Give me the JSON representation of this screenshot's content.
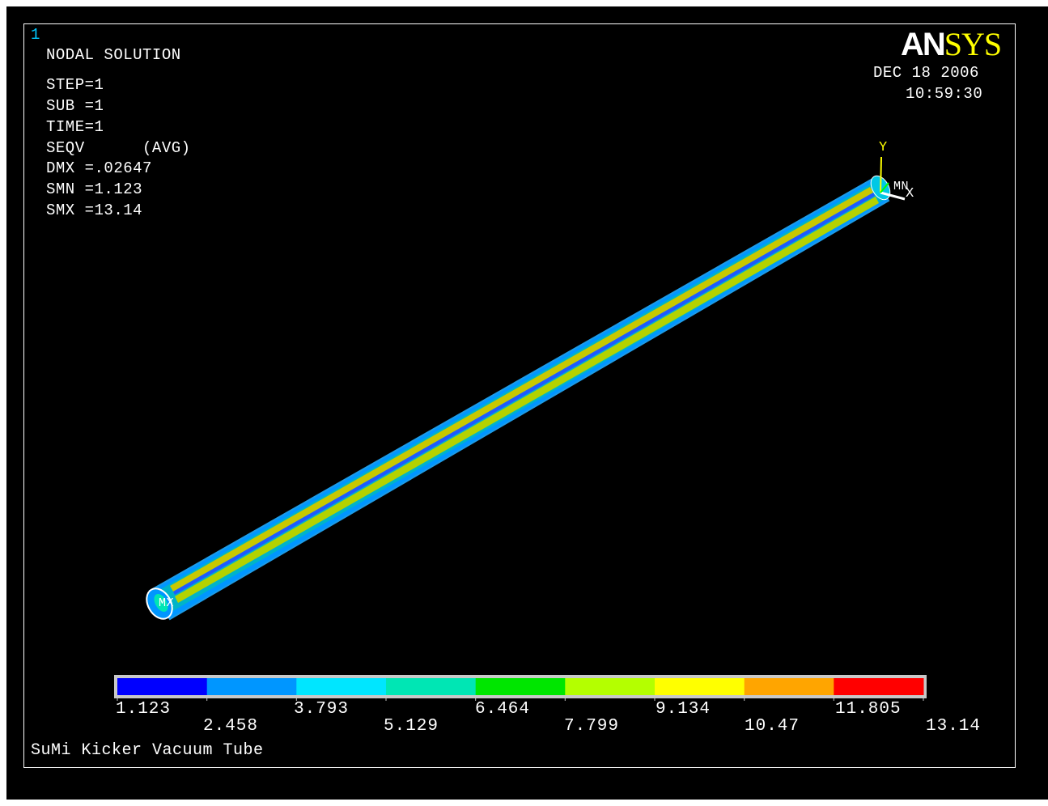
{
  "window_number": "1",
  "logo": {
    "part1": "AN",
    "part2": "SYS"
  },
  "header": {
    "title": "NODAL SOLUTION",
    "lines": [
      "STEP=1",
      "SUB =1",
      "TIME=1",
      "SEQV      (AVG)",
      "DMX =.02647",
      "SMN =1.123",
      "SMX =13.14"
    ]
  },
  "datetime": {
    "date": "DEC 18 2006",
    "time": "10:59:30"
  },
  "triad": {
    "y_label": "Y",
    "x_label": "X",
    "mn_label": "MN"
  },
  "mx_label": "MX",
  "legend": {
    "colors": [
      "#0000ff",
      "#0096ff",
      "#00e6ff",
      "#00e6b4",
      "#00e600",
      "#b4ff00",
      "#ffff00",
      "#ffa500",
      "#ff0000"
    ],
    "top_labels": [
      "1.123",
      "3.793",
      "6.464",
      "9.134",
      "11.805"
    ],
    "bottom_labels": [
      "2.458",
      "5.129",
      "7.799",
      "10.47",
      "13.14"
    ]
  },
  "caption": "SuMi Kicker Vacuum Tube"
}
